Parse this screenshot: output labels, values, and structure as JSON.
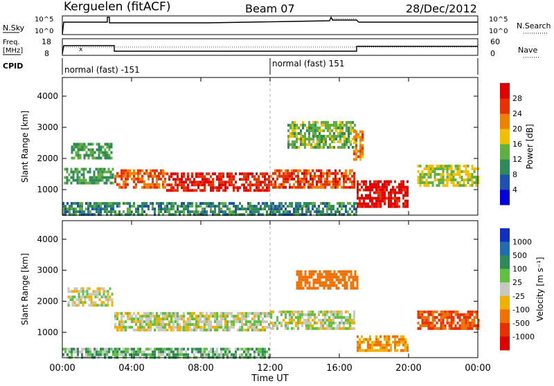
{
  "header": {
    "station": "Kerguelen (fitACF)",
    "beam": "Beam 07",
    "date": "28/Dec/2012"
  },
  "panels": {
    "nsky_label": "N.Sky",
    "nsearch_label": "N.Search",
    "freq_label_line1": "Freq.",
    "freq_label_line2": "[MHz]",
    "nave_label": "Nave",
    "cpid_label": "CPID",
    "cpid_modes": [
      "normal (fast) -151",
      "normal (fast) 151"
    ],
    "noise_ticks": [
      "10^5",
      "10^0"
    ],
    "freq_ticks": [
      "18",
      "8"
    ],
    "nave_ticks": [
      "60",
      "0"
    ]
  },
  "axes": {
    "ylabel": "Slant Range [km]",
    "xlabel": "Time UT",
    "x_ticks": [
      "00:00",
      "04:00",
      "08:00",
      "12:00",
      "16:00",
      "20:00",
      "00:00"
    ],
    "y_ticks": [
      "1000",
      "2000",
      "3000",
      "4000"
    ]
  },
  "colorbars": {
    "power": {
      "label": "Power [dB]",
      "ticks": [
        "4",
        "8",
        "12",
        "16",
        "20",
        "24",
        "28"
      ],
      "colors": [
        "#0000dd",
        "#1f4fb0",
        "#2f8a5a",
        "#60b040",
        "#f0c000",
        "#f08000",
        "#e83000",
        "#e00000"
      ]
    },
    "velocity": {
      "label": "Velocity [m s⁻¹]",
      "ticks": [
        "1000",
        "500",
        "100",
        "25",
        "-25",
        "-100",
        "-500",
        "-1000"
      ],
      "colors": [
        "#1030c0",
        "#1f6fb0",
        "#2f8a5a",
        "#60c040",
        "#c8c8c0",
        "#f0b000",
        "#f07000",
        "#e83000",
        "#e00000"
      ]
    }
  },
  "chart_data": [
    {
      "type": "heatmap",
      "title": "Power [dB]",
      "xlabel": "Time UT",
      "ylabel": "Slant Range [km]",
      "xlim": [
        0,
        24
      ],
      "ylim": [
        180,
        4600
      ],
      "units": "dB",
      "regions": [
        {
          "t0": 0.1,
          "t1": 2.9,
          "r0": 1200,
          "r1": 1700,
          "value": 10
        },
        {
          "t0": 0.5,
          "t1": 2.9,
          "r0": 2000,
          "r1": 2500,
          "value": 10
        },
        {
          "t0": 3.0,
          "t1": 6.0,
          "r0": 1100,
          "r1": 1650,
          "value": 22
        },
        {
          "t0": 6.0,
          "t1": 12.0,
          "r0": 950,
          "r1": 1550,
          "value": 26
        },
        {
          "t0": 12.0,
          "t1": 16.9,
          "r0": 1050,
          "r1": 1650,
          "value": 24
        },
        {
          "t0": 13.0,
          "t1": 16.9,
          "r0": 2400,
          "r1": 3200,
          "value": 12
        },
        {
          "t0": 16.8,
          "t1": 17.3,
          "r0": 2000,
          "r1": 2900,
          "value": 20
        },
        {
          "t0": 17.0,
          "t1": 20.0,
          "r0": 500,
          "r1": 1300,
          "value": 28
        },
        {
          "t0": 20.5,
          "t1": 24.0,
          "r0": 1100,
          "r1": 1800,
          "value": 14
        },
        {
          "t0": 0.0,
          "t1": 17.0,
          "r0": 180,
          "r1": 600,
          "value": 8
        }
      ]
    },
    {
      "type": "heatmap",
      "title": "Velocity [m s⁻¹]",
      "xlabel": "Time UT",
      "ylabel": "Slant Range [km]",
      "xlim": [
        0,
        24
      ],
      "ylim": [
        180,
        4600
      ],
      "units": "m s⁻¹",
      "regions": [
        {
          "t0": 0.3,
          "t1": 2.9,
          "r0": 1900,
          "r1": 2450,
          "value": 0
        },
        {
          "t0": 3.0,
          "t1": 12.0,
          "r0": 1050,
          "r1": 1650,
          "value": 0
        },
        {
          "t0": 12.0,
          "t1": 16.9,
          "r0": 1150,
          "r1": 1700,
          "value": 0
        },
        {
          "t0": 13.5,
          "t1": 17.0,
          "r0": 2400,
          "r1": 3000,
          "value": -300
        },
        {
          "t0": 17.0,
          "t1": 20.0,
          "r0": 400,
          "r1": 900,
          "value": -100
        },
        {
          "t0": 20.5,
          "t1": 24.0,
          "r0": 1100,
          "r1": 1700,
          "value": -500
        },
        {
          "t0": 0.0,
          "t1": 12.0,
          "r0": 180,
          "r1": 500,
          "value": 50
        }
      ]
    }
  ]
}
